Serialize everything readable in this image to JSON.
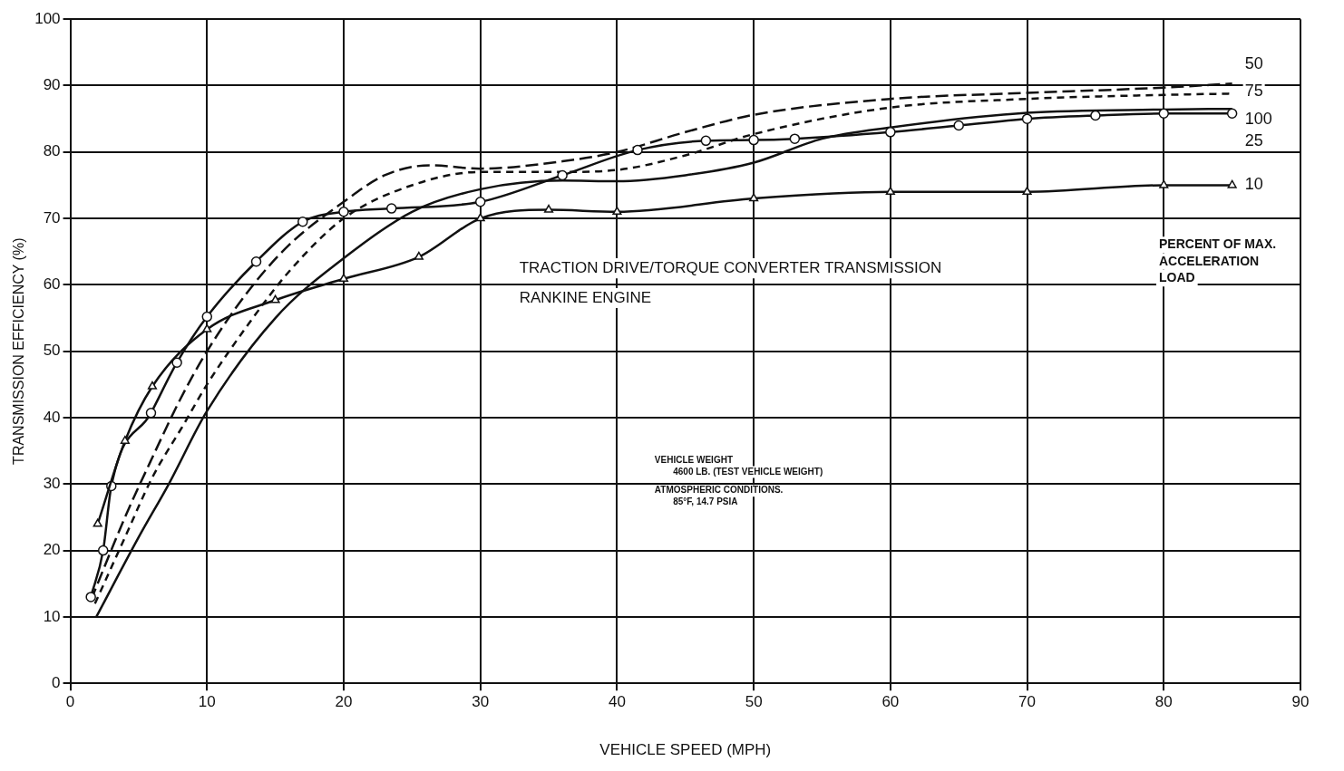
{
  "chart_data": {
    "type": "line",
    "xlabel": "VEHICLE SPEED (MPH)",
    "ylabel": "TRANSMISSION EFFICIENCY (%)",
    "xlim": [
      0,
      90
    ],
    "xticks": [
      0,
      10,
      20,
      30,
      40,
      50,
      60,
      70,
      80,
      90
    ],
    "ylim": [
      0,
      100
    ],
    "yticks": [
      0,
      10,
      20,
      30,
      40,
      50,
      60,
      70,
      80,
      90,
      100
    ],
    "grid": true,
    "legend": false,
    "annotations": [
      "TRACTION DRIVE/TORQUE CONVERTER TRANSMISSION",
      "RANKINE ENGINE",
      "VEHICLE WEIGHT",
      "4600 LB. (TEST VEHICLE WEIGHT)",
      "ATMOSPHERIC CONDITIONS.",
      "85°F, 14.7 PSIA",
      "PERCENT OF MAX.",
      "ACCELERATION",
      "LOAD"
    ],
    "series": [
      {
        "name": "10",
        "color": "#111111",
        "line_style": "solid",
        "marker": "triangle",
        "x": [
          2,
          4,
          6,
          10,
          15,
          20,
          25.5,
          30,
          35,
          40,
          50,
          60,
          70,
          80,
          85
        ],
        "values": [
          24,
          36.5,
          44.7,
          53.3,
          57.7,
          60.9,
          64.2,
          70,
          71.3,
          71,
          73,
          74,
          74,
          75,
          75
        ]
      },
      {
        "name": "25",
        "color": "#111111",
        "line_style": "solid",
        "marker": "circle",
        "x": [
          1.5,
          2.4,
          3,
          5.9,
          7.8,
          10,
          13.6,
          17,
          20,
          23.5,
          30,
          36,
          41.5,
          46.5,
          50,
          53,
          60,
          65,
          70,
          75,
          80,
          85
        ],
        "values": [
          13,
          20,
          29.7,
          40.7,
          48.3,
          55.2,
          63.5,
          69.5,
          71,
          71.5,
          72.5,
          76.5,
          80.3,
          81.7,
          81.8,
          82,
          83,
          84,
          85,
          85.5,
          85.8,
          85.8
        ]
      },
      {
        "name": "50",
        "color": "#111111",
        "line_style": "dashed",
        "marker": "none",
        "x": [
          1.5,
          4,
          6,
          8.1,
          10,
          13,
          16,
          20,
          23,
          26.3,
          30,
          36,
          40,
          45,
          50,
          60,
          70,
          80,
          85
        ],
        "values": [
          12.5,
          25,
          34,
          43,
          50,
          59,
          66,
          72.5,
          76.5,
          78,
          77.5,
          78.6,
          80,
          83,
          85.6,
          88,
          88.9,
          89.7,
          90.3
        ]
      },
      {
        "name": "75",
        "color": "#111111",
        "line_style": "dotted",
        "marker": "none",
        "x": [
          1.8,
          4,
          6,
          8.3,
          10,
          13,
          16,
          20,
          25,
          30,
          36,
          40,
          45,
          50,
          60,
          70,
          80,
          85
        ],
        "values": [
          12,
          22,
          31,
          39,
          45,
          54,
          62,
          70,
          75,
          77,
          77,
          77.3,
          79.5,
          82.7,
          86.7,
          88,
          88.6,
          88.8
        ]
      },
      {
        "name": "100",
        "color": "#111111",
        "line_style": "solid",
        "marker": "none",
        "x": [
          1.9,
          5,
          7.2,
          10,
          15,
          20,
          25,
          30,
          36,
          40,
          45,
          50,
          55,
          60,
          70,
          80,
          85
        ],
        "values": [
          10,
          22,
          30,
          41,
          55,
          64,
          71,
          74.4,
          75.7,
          75.6,
          76.5,
          78.4,
          82,
          83.7,
          85.9,
          86.4,
          86.5
        ]
      }
    ]
  }
}
